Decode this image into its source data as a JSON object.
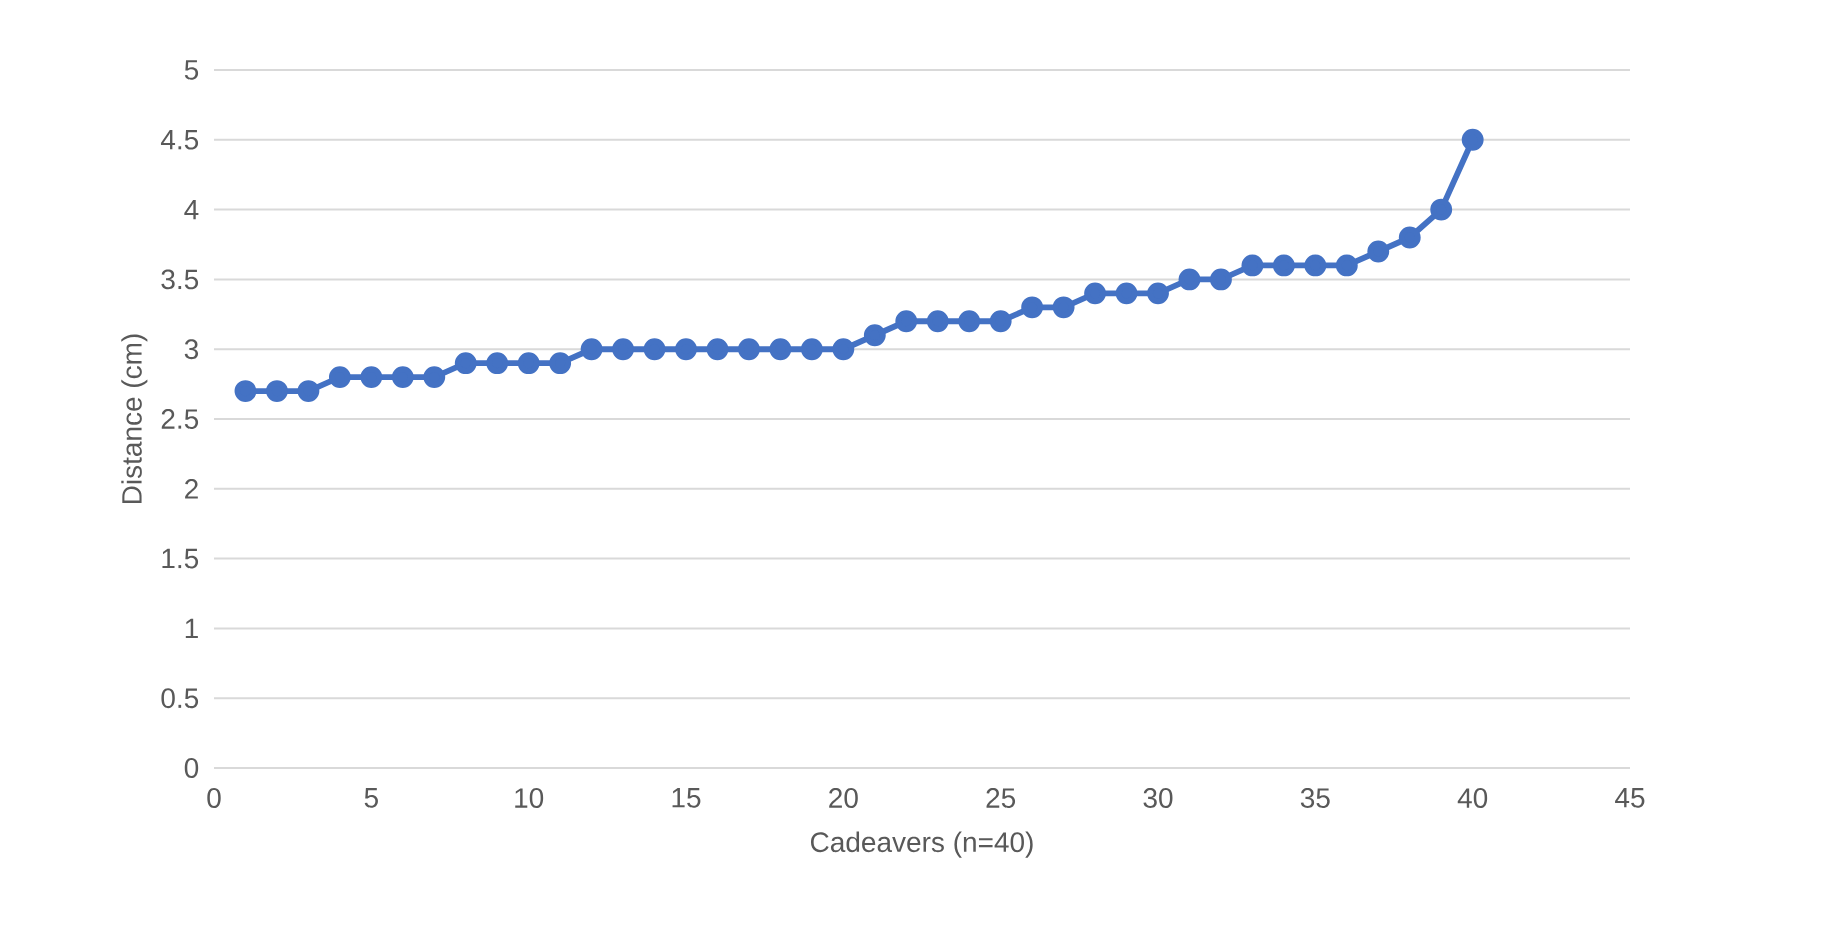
{
  "chart_data": {
    "type": "line",
    "xlabel": "Cadeavers (n=40)",
    "ylabel": "Distance (cm)",
    "x": [
      1,
      2,
      3,
      4,
      5,
      6,
      7,
      8,
      9,
      10,
      11,
      12,
      13,
      14,
      15,
      16,
      17,
      18,
      19,
      20,
      21,
      22,
      23,
      24,
      25,
      26,
      27,
      28,
      29,
      30,
      31,
      32,
      33,
      34,
      35,
      36,
      37,
      38,
      39,
      40
    ],
    "series": [
      {
        "color": "#4472c4",
        "values": [
          2.7,
          2.7,
          2.7,
          2.8,
          2.8,
          2.8,
          2.8,
          2.9,
          2.9,
          2.9,
          2.9,
          3.0,
          3.0,
          3.0,
          3.0,
          3.0,
          3.0,
          3.0,
          3.0,
          3.0,
          3.1,
          3.2,
          3.2,
          3.2,
          3.2,
          3.3,
          3.3,
          3.4,
          3.4,
          3.4,
          3.5,
          3.5,
          3.6,
          3.6,
          3.6,
          3.6,
          3.7,
          3.8,
          4.0,
          4.5
        ]
      }
    ],
    "xlim": [
      0,
      45
    ],
    "xticks": [
      0,
      5,
      10,
      15,
      20,
      25,
      30,
      35,
      40,
      45
    ],
    "ylim": [
      0,
      5
    ],
    "yticks": [
      0,
      0.5,
      1,
      1.5,
      2,
      2.5,
      3,
      3.5,
      4,
      4.5,
      5
    ],
    "grid": "y",
    "marker": "circle",
    "line_style": "solid"
  }
}
